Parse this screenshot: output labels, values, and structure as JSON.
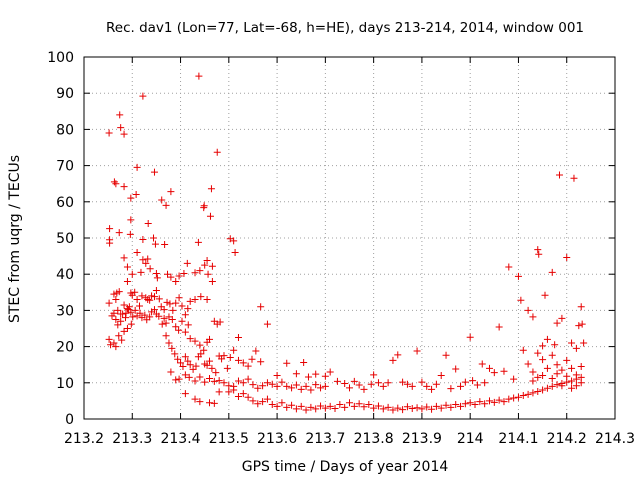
{
  "chart_data": {
    "type": "scatter",
    "title": "Rec. dav1 (Lon=77, Lat=-68, h=HE), days 213-214, 2014, window 001",
    "xlabel": "GPS time / Days of year 2014",
    "ylabel": "STEC from uqrg / TECUs",
    "xlim": [
      213.2,
      214.3
    ],
    "ylim": [
      0,
      100
    ],
    "xticks": [
      "213.2",
      "213.3",
      "213.4",
      "213.5",
      "213.6",
      "213.7",
      "213.8",
      "213.9",
      "214",
      "214.1",
      "214.2",
      "214.3"
    ],
    "yticks": [
      "0",
      "10",
      "20",
      "30",
      "40",
      "50",
      "60",
      "70",
      "80",
      "90",
      "100"
    ],
    "grid": true,
    "legend": "none",
    "marker": "plus",
    "color": "#e60000",
    "points": [
      [
        213.252,
        79.0
      ],
      [
        213.263,
        65.5
      ],
      [
        213.266,
        65.0
      ],
      [
        213.274,
        84.0
      ],
      [
        213.276,
        80.5
      ],
      [
        213.283,
        78.7
      ],
      [
        213.31,
        69.5
      ],
      [
        213.322,
        89.2
      ],
      [
        213.346,
        68.2
      ],
      [
        213.38,
        62.8
      ],
      [
        213.438,
        94.7
      ],
      [
        213.464,
        63.6
      ],
      [
        213.476,
        73.7
      ],
      [
        213.361,
        60.5
      ],
      [
        213.37,
        59.0
      ],
      [
        213.448,
        58.4
      ],
      [
        213.449,
        58.9
      ],
      [
        213.462,
        56.0
      ],
      [
        213.297,
        61.0
      ],
      [
        213.308,
        62.0
      ],
      [
        213.283,
        64.2
      ],
      [
        213.253,
        52.6
      ],
      [
        213.253,
        49.5
      ],
      [
        213.253,
        48.6
      ],
      [
        213.273,
        51.5
      ],
      [
        213.296,
        51.0
      ],
      [
        213.297,
        55.0
      ],
      [
        213.322,
        49.6
      ],
      [
        213.333,
        54.0
      ],
      [
        213.344,
        50.0
      ],
      [
        213.348,
        48.3
      ],
      [
        213.367,
        48.2
      ],
      [
        213.437,
        48.8
      ],
      [
        213.503,
        49.8
      ],
      [
        213.51,
        49.2
      ],
      [
        213.513,
        46.0
      ],
      [
        213.283,
        44.5
      ],
      [
        213.29,
        42.0
      ],
      [
        213.31,
        46.0
      ],
      [
        213.322,
        44.0
      ],
      [
        213.328,
        43.0
      ],
      [
        213.332,
        44.2
      ],
      [
        213.337,
        41.5
      ],
      [
        213.318,
        40.5
      ],
      [
        213.3,
        40.0
      ],
      [
        213.29,
        38.0
      ],
      [
        213.35,
        40.2
      ],
      [
        213.352,
        39.0
      ],
      [
        213.373,
        40.0
      ],
      [
        213.38,
        39.2
      ],
      [
        213.39,
        38.0
      ],
      [
        213.397,
        39.5
      ],
      [
        213.407,
        40.2
      ],
      [
        213.414,
        43.0
      ],
      [
        213.43,
        40.4
      ],
      [
        213.44,
        41.0
      ],
      [
        213.45,
        42.5
      ],
      [
        213.455,
        43.8
      ],
      [
        213.466,
        42.2
      ],
      [
        213.457,
        40.0
      ],
      [
        213.466,
        38.0
      ],
      [
        213.252,
        32.0
      ],
      [
        213.258,
        28.5
      ],
      [
        213.262,
        34.5
      ],
      [
        213.268,
        34.8
      ],
      [
        213.273,
        35.2
      ],
      [
        213.266,
        33.0
      ],
      [
        213.27,
        30.0
      ],
      [
        213.276,
        29.0
      ],
      [
        213.283,
        31.5
      ],
      [
        213.287,
        29.2
      ],
      [
        213.29,
        30.5
      ],
      [
        213.294,
        31.0
      ],
      [
        213.297,
        34.8
      ],
      [
        213.3,
        34.2
      ],
      [
        213.305,
        35.0
      ],
      [
        213.31,
        33.0
      ],
      [
        213.315,
        31.2
      ],
      [
        213.32,
        34.0
      ],
      [
        213.328,
        33.5
      ],
      [
        213.332,
        33.0
      ],
      [
        213.336,
        32.8
      ],
      [
        213.34,
        34.0
      ],
      [
        213.346,
        33.8
      ],
      [
        213.35,
        35.5
      ],
      [
        213.356,
        33.2
      ],
      [
        213.36,
        31.0
      ],
      [
        213.366,
        30.2
      ],
      [
        213.372,
        32.2
      ],
      [
        213.378,
        31.8
      ],
      [
        213.384,
        30.0
      ],
      [
        213.39,
        32.0
      ],
      [
        213.397,
        33.5
      ],
      [
        213.403,
        31.2
      ],
      [
        213.41,
        28.8
      ],
      [
        213.415,
        30.5
      ],
      [
        213.42,
        32.5
      ],
      [
        213.43,
        33.0
      ],
      [
        213.442,
        33.8
      ],
      [
        213.455,
        33.0
      ],
      [
        213.262,
        29.2
      ],
      [
        213.266,
        27.5
      ],
      [
        213.27,
        26.0
      ],
      [
        213.276,
        27.0
      ],
      [
        213.28,
        29.0
      ],
      [
        213.286,
        28.0
      ],
      [
        213.292,
        30.2
      ],
      [
        213.297,
        29.5
      ],
      [
        213.301,
        28.2
      ],
      [
        213.306,
        30.0
      ],
      [
        213.31,
        28.5
      ],
      [
        213.316,
        29.2
      ],
      [
        213.32,
        28.0
      ],
      [
        213.326,
        28.7
      ],
      [
        213.33,
        27.4
      ],
      [
        213.336,
        28.2
      ],
      [
        213.34,
        29.6
      ],
      [
        213.346,
        30.2
      ],
      [
        213.35,
        29.0
      ],
      [
        213.355,
        28.4
      ],
      [
        213.362,
        26.2
      ],
      [
        213.366,
        27.8
      ],
      [
        213.37,
        26.5
      ],
      [
        213.376,
        28.2
      ],
      [
        213.383,
        27.5
      ],
      [
        213.39,
        25.5
      ],
      [
        213.396,
        24.5
      ],
      [
        213.403,
        27.0
      ],
      [
        213.41,
        24.0
      ],
      [
        213.416,
        26.0
      ],
      [
        213.42,
        22.2
      ],
      [
        213.43,
        21.5
      ],
      [
        213.44,
        20.4
      ],
      [
        213.448,
        19.0
      ],
      [
        213.455,
        21.2
      ],
      [
        213.46,
        22.0
      ],
      [
        213.47,
        27.0
      ],
      [
        213.476,
        26.2
      ],
      [
        213.482,
        26.8
      ],
      [
        213.566,
        31.0
      ],
      [
        213.58,
        26.2
      ],
      [
        213.52,
        22.5
      ],
      [
        213.252,
        22.0
      ],
      [
        213.255,
        20.5
      ],
      [
        213.262,
        21.0
      ],
      [
        213.266,
        20.0
      ],
      [
        213.272,
        23.0
      ],
      [
        213.278,
        21.8
      ],
      [
        213.283,
        24.2
      ],
      [
        213.29,
        25.0
      ],
      [
        213.298,
        26.2
      ],
      [
        213.37,
        23.0
      ],
      [
        213.376,
        21.0
      ],
      [
        213.382,
        19.5
      ],
      [
        213.388,
        18.0
      ],
      [
        213.394,
        16.5
      ],
      [
        213.4,
        15.5
      ],
      [
        213.405,
        14.5
      ],
      [
        213.41,
        17.2
      ],
      [
        213.415,
        16.0
      ],
      [
        213.42,
        15.0
      ],
      [
        213.426,
        13.7
      ],
      [
        213.432,
        14.6
      ],
      [
        213.437,
        17.2
      ],
      [
        213.442,
        18.0
      ],
      [
        213.45,
        15.2
      ],
      [
        213.455,
        14.8
      ],
      [
        213.46,
        16.0
      ],
      [
        213.465,
        14.0
      ],
      [
        213.473,
        12.8
      ],
      [
        213.48,
        17.4
      ],
      [
        213.485,
        16.6
      ],
      [
        213.49,
        17.5
      ],
      [
        213.497,
        14.0
      ],
      [
        213.503,
        17.0
      ],
      [
        213.51,
        19.0
      ],
      [
        213.52,
        16.2
      ],
      [
        213.53,
        15.5
      ],
      [
        213.54,
        14.6
      ],
      [
        213.548,
        16.5
      ],
      [
        213.556,
        18.8
      ],
      [
        213.566,
        15.8
      ],
      [
        213.38,
        13.0
      ],
      [
        213.39,
        10.8
      ],
      [
        213.397,
        11.0
      ],
      [
        213.41,
        12.2
      ],
      [
        213.418,
        11.5
      ],
      [
        213.43,
        10.5
      ],
      [
        213.44,
        11.6
      ],
      [
        213.45,
        10.2
      ],
      [
        213.46,
        11.2
      ],
      [
        213.47,
        10.4
      ],
      [
        213.48,
        10.6
      ],
      [
        213.49,
        10.0
      ],
      [
        213.5,
        9.2
      ],
      [
        213.51,
        9.0
      ],
      [
        213.52,
        10.5
      ],
      [
        213.53,
        10.0
      ],
      [
        213.54,
        11.0
      ],
      [
        213.55,
        9.5
      ],
      [
        213.56,
        8.5
      ],
      [
        213.57,
        9.2
      ],
      [
        213.58,
        10.0
      ],
      [
        213.59,
        9.6
      ],
      [
        213.6,
        9.0
      ],
      [
        213.61,
        10.2
      ],
      [
        213.62,
        9.0
      ],
      [
        213.63,
        8.6
      ],
      [
        213.64,
        9.4
      ],
      [
        213.65,
        8.2
      ],
      [
        213.66,
        9.0
      ],
      [
        213.67,
        8.0
      ],
      [
        213.68,
        9.5
      ],
      [
        213.69,
        8.6
      ],
      [
        213.7,
        9.0
      ],
      [
        213.41,
        7.0
      ],
      [
        213.43,
        5.5
      ],
      [
        213.44,
        4.8
      ],
      [
        213.46,
        4.5
      ],
      [
        213.47,
        4.3
      ],
      [
        213.48,
        7.5
      ],
      [
        213.5,
        7.5
      ],
      [
        213.51,
        8.0
      ],
      [
        213.52,
        6.2
      ],
      [
        213.53,
        7.0
      ],
      [
        213.54,
        6.0
      ],
      [
        213.55,
        5.0
      ],
      [
        213.56,
        4.2
      ],
      [
        213.57,
        4.8
      ],
      [
        213.58,
        5.5
      ],
      [
        213.59,
        4.0
      ],
      [
        213.6,
        3.5
      ],
      [
        213.61,
        4.5
      ],
      [
        213.62,
        3.2
      ],
      [
        213.63,
        3.8
      ],
      [
        213.64,
        2.8
      ],
      [
        213.65,
        3.5
      ],
      [
        213.66,
        2.5
      ],
      [
        213.67,
        3.2
      ],
      [
        213.68,
        2.8
      ],
      [
        213.69,
        3.6
      ],
      [
        213.7,
        3.0
      ],
      [
        213.71,
        3.5
      ],
      [
        213.72,
        2.9
      ],
      [
        213.73,
        4.0
      ],
      [
        213.74,
        3.2
      ],
      [
        213.75,
        4.5
      ],
      [
        213.76,
        3.5
      ],
      [
        213.77,
        4.2
      ],
      [
        213.78,
        3.4
      ],
      [
        213.79,
        4.0
      ],
      [
        213.8,
        3.0
      ],
      [
        213.81,
        3.6
      ],
      [
        213.82,
        2.8
      ],
      [
        213.83,
        3.2
      ],
      [
        213.84,
        2.5
      ],
      [
        213.85,
        3.0
      ],
      [
        213.86,
        2.6
      ],
      [
        213.87,
        3.4
      ],
      [
        213.88,
        2.9
      ],
      [
        213.89,
        3.1
      ],
      [
        213.9,
        2.8
      ],
      [
        213.91,
        3.3
      ],
      [
        213.92,
        2.7
      ],
      [
        213.93,
        3.5
      ],
      [
        213.94,
        3.0
      ],
      [
        213.95,
        3.8
      ],
      [
        213.96,
        3.2
      ],
      [
        213.97,
        4.0
      ],
      [
        213.98,
        3.5
      ],
      [
        213.99,
        4.2
      ],
      [
        214.0,
        4.5
      ],
      [
        214.01,
        4.0
      ],
      [
        214.02,
        4.8
      ],
      [
        214.03,
        4.2
      ],
      [
        214.04,
        5.0
      ],
      [
        214.05,
        4.6
      ],
      [
        214.06,
        5.2
      ],
      [
        214.07,
        4.8
      ],
      [
        214.08,
        5.5
      ],
      [
        214.09,
        5.8
      ],
      [
        214.1,
        6.0
      ],
      [
        214.11,
        6.5
      ],
      [
        214.12,
        6.8
      ],
      [
        214.13,
        7.2
      ],
      [
        214.14,
        7.6
      ],
      [
        214.15,
        8.0
      ],
      [
        214.16,
        8.5
      ],
      [
        214.17,
        9.0
      ],
      [
        214.18,
        9.5
      ],
      [
        214.19,
        9.8
      ],
      [
        214.2,
        10.2
      ],
      [
        214.21,
        10.5
      ],
      [
        214.22,
        11.0
      ],
      [
        214.23,
        11.5
      ],
      [
        213.6,
        12.0
      ],
      [
        213.62,
        15.4
      ],
      [
        213.64,
        12.5
      ],
      [
        213.655,
        15.6
      ],
      [
        213.665,
        11.6
      ],
      [
        213.68,
        12.4
      ],
      [
        213.7,
        11.8
      ],
      [
        213.71,
        13.0
      ],
      [
        213.725,
        10.4
      ],
      [
        213.74,
        9.8
      ],
      [
        213.75,
        8.6
      ],
      [
        213.76,
        10.4
      ],
      [
        213.77,
        9.4
      ],
      [
        213.78,
        8.2
      ],
      [
        213.795,
        9.6
      ],
      [
        213.8,
        12.2
      ],
      [
        213.81,
        10.0
      ],
      [
        213.82,
        9.0
      ],
      [
        213.83,
        10.0
      ],
      [
        213.84,
        16.2
      ],
      [
        213.85,
        17.7
      ],
      [
        213.86,
        10.2
      ],
      [
        213.87,
        9.6
      ],
      [
        213.88,
        9.0
      ],
      [
        213.89,
        18.8
      ],
      [
        213.9,
        10.2
      ],
      [
        213.91,
        9.0
      ],
      [
        213.92,
        8.2
      ],
      [
        213.93,
        9.6
      ],
      [
        213.94,
        12.0
      ],
      [
        213.95,
        17.6
      ],
      [
        213.96,
        8.4
      ],
      [
        213.97,
        13.8
      ],
      [
        213.98,
        9.0
      ],
      [
        213.99,
        10.2
      ],
      [
        214.0,
        22.6
      ],
      [
        214.005,
        10.6
      ],
      [
        214.015,
        9.4
      ],
      [
        214.025,
        15.2
      ],
      [
        214.03,
        10.0
      ],
      [
        214.04,
        14.0
      ],
      [
        214.05,
        12.8
      ],
      [
        214.06,
        25.4
      ],
      [
        214.07,
        13.2
      ],
      [
        214.08,
        42.0
      ],
      [
        214.09,
        11.0
      ],
      [
        214.1,
        39.4
      ],
      [
        214.105,
        32.8
      ],
      [
        214.11,
        19.0
      ],
      [
        214.12,
        30.0
      ],
      [
        214.13,
        28.2
      ],
      [
        214.14,
        46.8
      ],
      [
        214.142,
        45.5
      ],
      [
        214.15,
        20.2
      ],
      [
        214.155,
        34.2
      ],
      [
        214.16,
        22.0
      ],
      [
        214.17,
        40.5
      ],
      [
        214.175,
        20.5
      ],
      [
        214.18,
        26.5
      ],
      [
        214.185,
        67.4
      ],
      [
        214.19,
        27.8
      ],
      [
        214.2,
        44.6
      ],
      [
        214.21,
        21.0
      ],
      [
        214.215,
        66.5
      ],
      [
        214.22,
        19.5
      ],
      [
        214.225,
        25.8
      ],
      [
        214.23,
        31.0
      ],
      [
        214.232,
        26.2
      ],
      [
        214.235,
        21.0
      ],
      [
        214.12,
        15.2
      ],
      [
        214.13,
        13.0
      ],
      [
        214.14,
        18.2
      ],
      [
        214.15,
        16.4
      ],
      [
        214.16,
        14.0
      ],
      [
        214.17,
        17.6
      ],
      [
        214.18,
        15.0
      ],
      [
        214.19,
        13.5
      ],
      [
        214.2,
        16.2
      ],
      [
        214.21,
        14.0
      ],
      [
        214.22,
        12.2
      ],
      [
        214.23,
        14.5
      ],
      [
        214.13,
        10.5
      ],
      [
        214.14,
        11.5
      ],
      [
        214.15,
        12.0
      ],
      [
        214.17,
        11.2
      ],
      [
        214.18,
        12.5
      ],
      [
        214.2,
        11.8
      ],
      [
        214.22,
        9.2
      ],
      [
        214.23,
        10.0
      ],
      [
        214.21,
        8.5
      ],
      [
        214.19,
        9.2
      ]
    ]
  }
}
